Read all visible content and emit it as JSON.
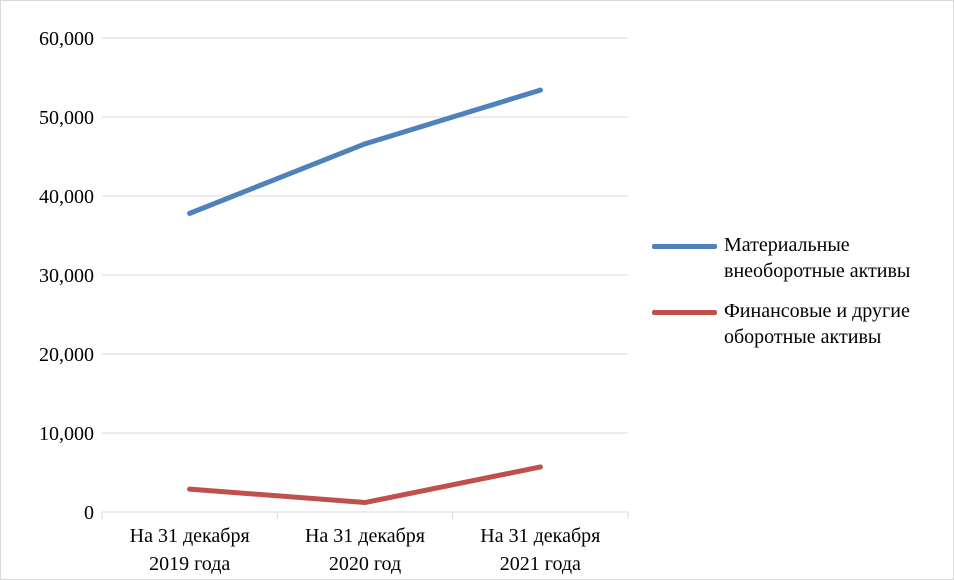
{
  "chart_data": {
    "type": "line",
    "categories": [
      [
        "На 31 декабря",
        "2019 года"
      ],
      [
        "На 31 декабря",
        "2020 год"
      ],
      [
        "На 31 декабря",
        "2021 года"
      ]
    ],
    "series": [
      {
        "name": "Материальные внеоборотные активы",
        "name_lines": [
          "Материальные",
          "внеоборотные активы"
        ],
        "color": "#4f81bd",
        "values": [
          37800,
          46600,
          53400
        ]
      },
      {
        "name": "Финансовые и другие оборотные активы",
        "name_lines": [
          "Финансовые и другие",
          "оборотные активы"
        ],
        "color": "#c0504d",
        "values": [
          2900,
          1200,
          5700
        ]
      }
    ],
    "yticks": [
      "0",
      "10,000",
      "20,000",
      "30,000",
      "40,000",
      "50,000",
      "60,000"
    ],
    "ylim": [
      0,
      60000
    ],
    "grid": true,
    "legend_position": "right"
  }
}
